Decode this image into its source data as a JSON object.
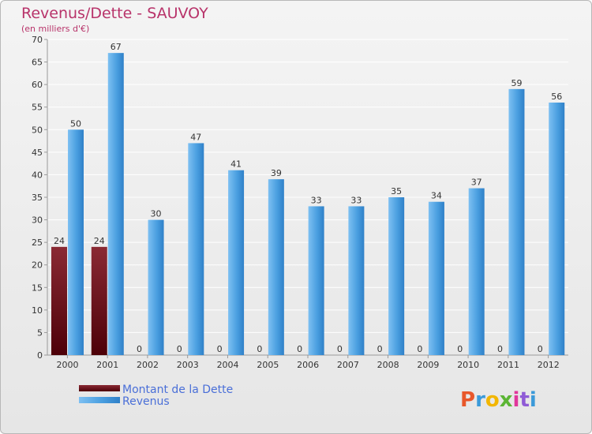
{
  "chart_data": {
    "type": "bar",
    "title": "Revenus/Dette - SAUVOY",
    "subtitle": "(en milliers d'€)",
    "categories": [
      "2000",
      "2001",
      "2002",
      "2003",
      "2004",
      "2005",
      "2006",
      "2007",
      "2008",
      "2009",
      "2010",
      "2011",
      "2012"
    ],
    "series": [
      {
        "name": "Montant de la Dette",
        "color": "#6b0f16",
        "values": [
          24,
          24,
          0,
          0,
          0,
          0,
          0,
          0,
          0,
          0,
          0,
          0,
          0
        ]
      },
      {
        "name": "Revenus",
        "color": "#4a9fe0",
        "values": [
          50,
          67,
          30,
          47,
          41,
          39,
          33,
          33,
          35,
          34,
          37,
          59,
          56
        ]
      }
    ],
    "ylim": [
      0,
      70
    ],
    "yticks": [
      0,
      5,
      10,
      15,
      20,
      25,
      30,
      35,
      40,
      45,
      50,
      55,
      60,
      65,
      70
    ],
    "grid": true,
    "legend": "bottom-left"
  },
  "branding": {
    "logo_text": "Proxiti",
    "logo_colors": [
      "#e8572a",
      "#3b9ad9",
      "#f2b600",
      "#5bb534",
      "#e0379b",
      "#8f5bd6",
      "#3b9ad9"
    ]
  }
}
